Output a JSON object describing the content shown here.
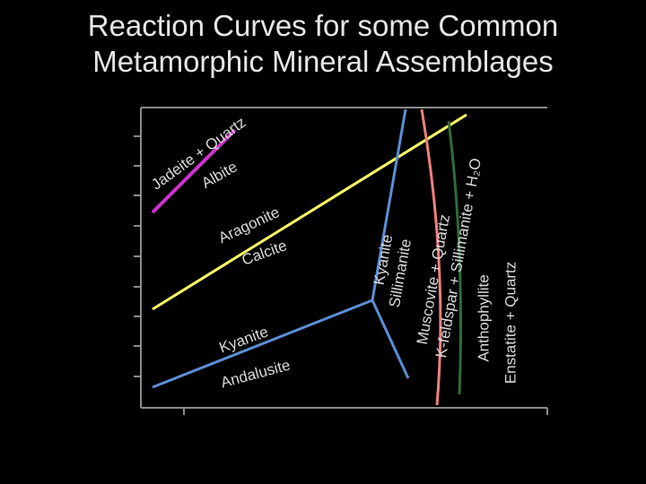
{
  "header": {
    "title_lines": [
      "Reaction Curves for some Common",
      "Metamorphic Mineral Assemblages"
    ]
  },
  "labels": {
    "jadeite_quartz": "Jadeite + Quartz",
    "albite": "Albite",
    "aragonite": "Aragonite",
    "calcite": "Calcite",
    "kyanite_low": "Kyanite",
    "andalusite": "Andalusite",
    "kyanite_high": "Kyanite",
    "sillimanite": "Sillimanite",
    "muscovite_quartz": "Muscovite + Quartz",
    "kfeldspar": "K-feldspar + Sillimanite + H₂O",
    "anthophyllite": "Anthophyllite",
    "enstatite_quartz": "Enstatite + Quartz"
  }
}
